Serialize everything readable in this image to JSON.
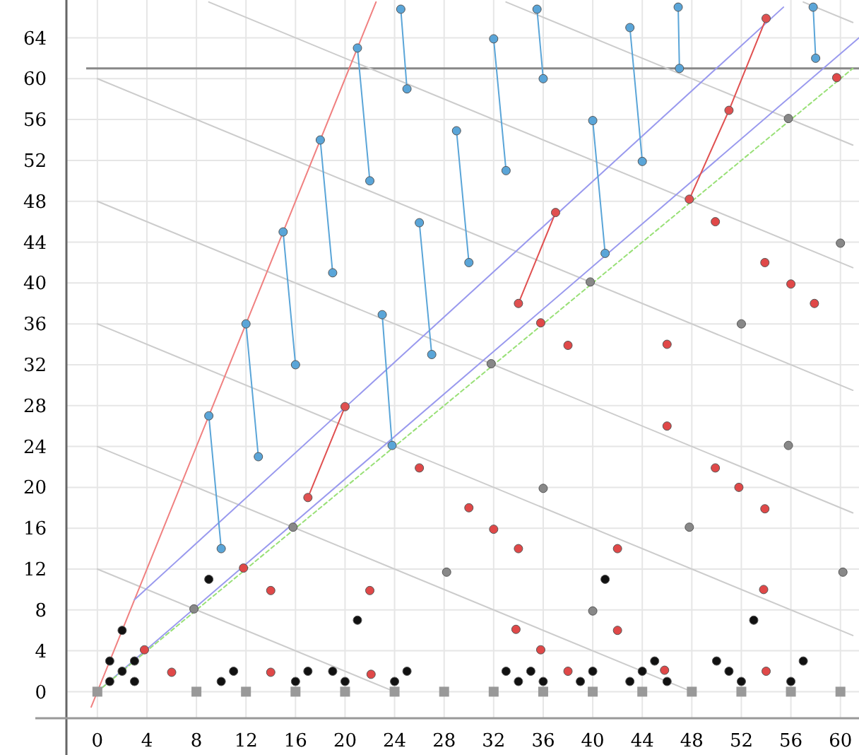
{
  "chart_data": {
    "type": "scatter",
    "xlim": [
      -2.5,
      61.5
    ],
    "ylim": [
      -2.6,
      67.7
    ],
    "xticks": [
      0,
      4,
      8,
      12,
      16,
      20,
      24,
      28,
      32,
      36,
      40,
      44,
      48,
      52,
      56,
      60
    ],
    "yticks": [
      0,
      4,
      8,
      12,
      16,
      20,
      24,
      28,
      32,
      36,
      40,
      44,
      48,
      52,
      56,
      60,
      64
    ],
    "grid": true,
    "ref_lines": [
      {
        "axis": "y",
        "value": 61,
        "color": "#888888"
      }
    ],
    "series": [
      {
        "type": "line",
        "color": "#cccccc",
        "line_style": "solid",
        "marker": "none",
        "x": [
          0,
          24
        ],
        "values": [
          12,
          0
        ]
      },
      {
        "type": "line",
        "color": "#cccccc",
        "line_style": "solid",
        "marker": "none",
        "x": [
          0,
          48
        ],
        "values": [
          24,
          0
        ]
      },
      {
        "type": "line",
        "color": "#cccccc",
        "line_style": "solid",
        "marker": "none",
        "x": [
          0,
          61
        ],
        "values": [
          36,
          5.5
        ]
      },
      {
        "type": "line",
        "color": "#cccccc",
        "line_style": "solid",
        "marker": "none",
        "x": [
          0,
          61
        ],
        "values": [
          48,
          17.5
        ]
      },
      {
        "type": "line",
        "color": "#cccccc",
        "line_style": "solid",
        "marker": "none",
        "x": [
          0,
          61
        ],
        "values": [
          60,
          29.5
        ]
      },
      {
        "type": "line",
        "color": "#cccccc",
        "line_style": "solid",
        "marker": "none",
        "x": [
          9,
          61
        ],
        "values": [
          67.5,
          41.5
        ]
      },
      {
        "type": "line",
        "color": "#cccccc",
        "line_style": "solid",
        "marker": "none",
        "x": [
          33,
          61
        ],
        "values": [
          67.5,
          53.5
        ]
      },
      {
        "type": "line",
        "color": "#cccccc",
        "line_style": "solid",
        "marker": "none",
        "x": [
          57,
          61
        ],
        "values": [
          67.5,
          65.5
        ]
      },
      {
        "type": "line",
        "color": "#f08080",
        "line_style": "solid",
        "marker": "none",
        "x": [
          -0.5,
          22.5
        ],
        "values": [
          -1.5,
          67.5
        ]
      },
      {
        "type": "line",
        "color": "#9999ee",
        "line_style": "solid",
        "marker": "none",
        "x": [
          3,
          55.4
        ],
        "values": [
          9,
          67
        ]
      },
      {
        "type": "line",
        "color": "#9999ee",
        "line_style": "solid",
        "marker": "none",
        "x": [
          0,
          61.5
        ],
        "values": [
          0,
          64
        ]
      },
      {
        "type": "line",
        "color": "#99e077",
        "line_style": "dotted",
        "marker": "none",
        "x": [
          0,
          61
        ],
        "values": [
          0,
          61
        ]
      },
      {
        "type": "line",
        "color": "#5aa5d8",
        "line_style": "solid",
        "marker": "circle",
        "x": [
          9,
          10,
          null,
          12,
          13,
          null,
          15,
          16,
          null,
          18,
          19,
          null,
          21,
          22,
          null,
          24.5,
          25,
          null,
          23,
          23.8,
          null,
          26,
          27,
          null,
          29,
          30,
          null,
          32,
          33,
          null,
          35.5,
          36,
          null,
          40,
          41,
          null,
          43,
          44,
          null,
          46.9,
          47,
          null,
          57.8,
          58
        ],
        "values": [
          27,
          14,
          null,
          36,
          23,
          null,
          45,
          32,
          null,
          54,
          41,
          null,
          63,
          50,
          null,
          66.8,
          59,
          null,
          36.9,
          24.1,
          null,
          45.9,
          33,
          null,
          54.9,
          42,
          null,
          63.9,
          51,
          null,
          66.8,
          60,
          null,
          55.9,
          42.9,
          null,
          65,
          51.9,
          null,
          67,
          61,
          null,
          67,
          62
        ]
      },
      {
        "type": "line",
        "color": "#e05050",
        "line_style": "solid",
        "marker": "circle",
        "x": [
          17,
          20,
          null,
          34,
          37,
          null,
          47.8,
          51,
          54
        ],
        "values": [
          19,
          27.9,
          null,
          38,
          46.9,
          null,
          48.2,
          56.9,
          65.9
        ]
      },
      {
        "color": "#111111",
        "marker": "circle",
        "x": [
          1,
          2,
          3,
          2,
          3,
          1,
          9,
          11,
          10,
          17,
          16,
          19,
          20,
          21,
          25,
          24,
          33,
          34,
          35,
          36,
          40,
          39,
          44,
          43,
          45,
          46,
          50,
          51,
          52,
          57,
          56,
          41,
          53
        ],
        "values": [
          3,
          6,
          3,
          2,
          1,
          1,
          11,
          2,
          1,
          2,
          1,
          2,
          1,
          7,
          2,
          1,
          2,
          1,
          2,
          1,
          2,
          1,
          2,
          1,
          3,
          1,
          3,
          2,
          1,
          3,
          1,
          11,
          7
        ]
      },
      {
        "color": "#e04848",
        "marker": "circle",
        "x": [
          3.8,
          6,
          11.8,
          14,
          14,
          22,
          22.1,
          26,
          30,
          32,
          34,
          33.8,
          35.8,
          38,
          42,
          42,
          46,
          45.8,
          51.8,
          53.9,
          53.8,
          54,
          49.9,
          35.8,
          38,
          46,
          49.9,
          53.9,
          56,
          57.9,
          59.7
        ],
        "values": [
          4.1,
          1.9,
          12.1,
          9.9,
          1.9,
          9.9,
          1.7,
          21.9,
          18,
          15.9,
          14,
          6.1,
          4.1,
          2,
          6,
          14,
          26,
          2.1,
          20,
          17.9,
          10,
          2,
          21.9,
          36.1,
          33.9,
          34,
          46,
          42,
          39.9,
          38,
          60.1
        ]
      },
      {
        "color": "#888888",
        "marker": "circle",
        "x": [
          7.8,
          15.8,
          28.2,
          40,
          36,
          47.8,
          55.8,
          60.2,
          31.8,
          39.8,
          55.8,
          60,
          52
        ],
        "values": [
          8.1,
          16.1,
          11.7,
          7.9,
          19.9,
          16.1,
          24.1,
          11.7,
          32.1,
          40.1,
          56.1,
          43.9,
          36
        ]
      },
      {
        "color": "#999999",
        "marker": "square",
        "x": [
          0,
          8,
          12,
          16,
          20,
          24,
          28,
          32,
          36,
          40,
          44,
          48,
          52,
          56,
          60
        ],
        "values": [
          0,
          0,
          0,
          0,
          0,
          0,
          0,
          0,
          0,
          0,
          0,
          0,
          0,
          0,
          0
        ]
      }
    ]
  }
}
